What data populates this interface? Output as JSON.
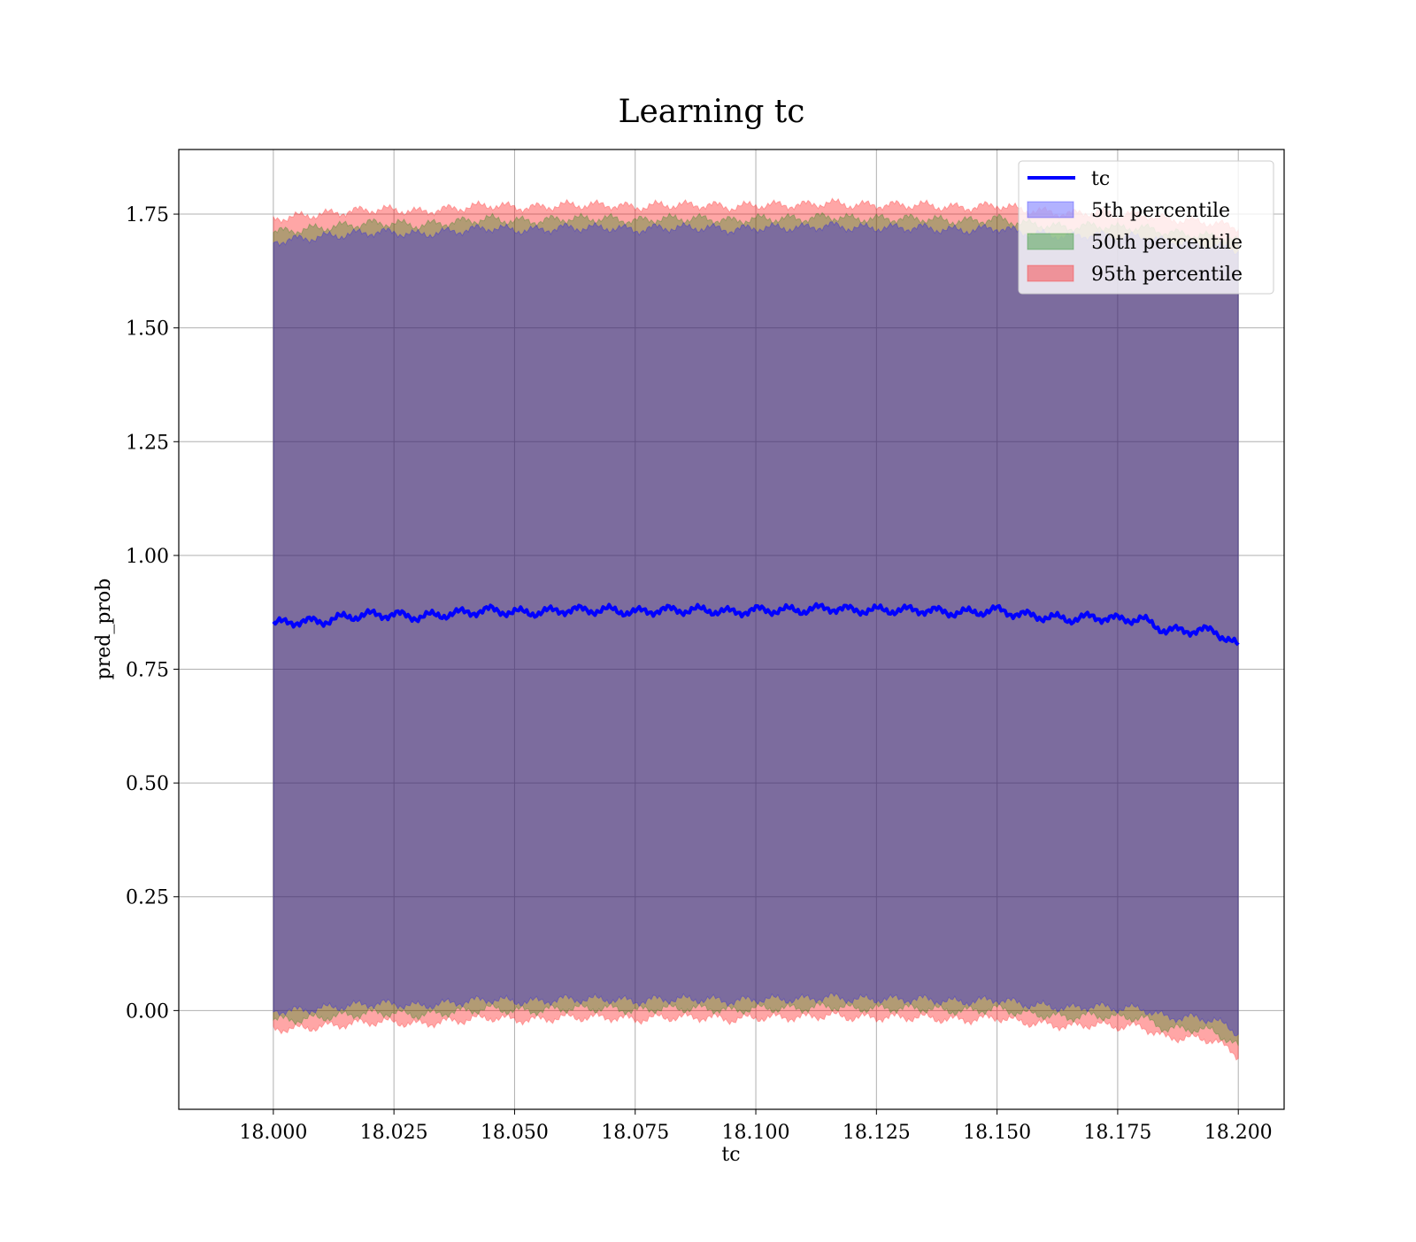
{
  "chart_data": {
    "type": "area",
    "title": "Learning tc",
    "xlabel": "tc",
    "ylabel": "pred_prob",
    "xlim": [
      17.9804,
      18.2095
    ],
    "ylim": [
      -0.217,
      1.892
    ],
    "grid": true,
    "legend_position": "top-right",
    "x_ticks": [
      18.0,
      18.025,
      18.05,
      18.075,
      18.1,
      18.125,
      18.15,
      18.175,
      18.2
    ],
    "x_tick_labels": [
      "18.000",
      "18.025",
      "18.050",
      "18.075",
      "18.100",
      "18.125",
      "18.150",
      "18.175",
      "18.200"
    ],
    "y_ticks": [
      0.0,
      0.25,
      0.5,
      0.75,
      1.0,
      1.25,
      1.5,
      1.75
    ],
    "y_tick_labels": [
      "0.00",
      "0.25",
      "0.50",
      "0.75",
      "1.00",
      "1.25",
      "1.50",
      "1.75"
    ],
    "x": [
      18.0,
      18.005,
      18.01,
      18.015,
      18.02,
      18.025,
      18.03,
      18.035,
      18.04,
      18.045,
      18.05,
      18.055,
      18.06,
      18.065,
      18.07,
      18.075,
      18.08,
      18.085,
      18.09,
      18.095,
      18.1,
      18.105,
      18.11,
      18.115,
      18.12,
      18.125,
      18.13,
      18.135,
      18.14,
      18.145,
      18.15,
      18.155,
      18.16,
      18.165,
      18.17,
      18.175,
      18.18,
      18.185,
      18.19,
      18.195,
      18.2
    ],
    "series": [
      {
        "name": "tc",
        "color": "#0000ff",
        "values": [
          0.85,
          0.855,
          0.855,
          0.865,
          0.87,
          0.87,
          0.865,
          0.87,
          0.875,
          0.88,
          0.875,
          0.875,
          0.88,
          0.88,
          0.88,
          0.875,
          0.88,
          0.88,
          0.88,
          0.875,
          0.88,
          0.88,
          0.88,
          0.885,
          0.88,
          0.88,
          0.88,
          0.88,
          0.875,
          0.875,
          0.88,
          0.87,
          0.865,
          0.86,
          0.865,
          0.86,
          0.86,
          0.835,
          0.835,
          0.835,
          0.8
        ]
      },
      {
        "name": "5th percentile",
        "color": "#0000ff",
        "lower": [
          0.0,
          0.0,
          0.005,
          0.01,
          0.015,
          0.015,
          0.01,
          0.015,
          0.02,
          0.025,
          0.02,
          0.02,
          0.025,
          0.025,
          0.025,
          0.02,
          0.025,
          0.025,
          0.025,
          0.02,
          0.025,
          0.025,
          0.025,
          0.03,
          0.025,
          0.025,
          0.025,
          0.025,
          0.02,
          0.02,
          0.025,
          0.015,
          0.01,
          0.005,
          0.01,
          0.005,
          0.005,
          -0.015,
          -0.015,
          -0.02,
          -0.05
        ],
        "upper": [
          1.69,
          1.695,
          1.7,
          1.705,
          1.71,
          1.71,
          1.705,
          1.71,
          1.715,
          1.72,
          1.715,
          1.715,
          1.72,
          1.72,
          1.72,
          1.715,
          1.72,
          1.72,
          1.72,
          1.715,
          1.72,
          1.72,
          1.72,
          1.725,
          1.72,
          1.72,
          1.72,
          1.72,
          1.715,
          1.715,
          1.72,
          1.71,
          1.705,
          1.7,
          1.705,
          1.7,
          1.7,
          1.69,
          1.685,
          1.68,
          1.67
        ]
      },
      {
        "name": "50th percentile",
        "color": "#008000",
        "lower": [
          -0.02,
          -0.02,
          -0.015,
          -0.01,
          -0.005,
          -0.005,
          -0.01,
          -0.005,
          0.0,
          0.005,
          0.0,
          0.0,
          0.005,
          0.005,
          0.005,
          0.0,
          0.005,
          0.005,
          0.005,
          0.0,
          0.005,
          0.005,
          0.005,
          0.01,
          0.005,
          0.005,
          0.005,
          0.005,
          0.0,
          0.0,
          0.005,
          -0.005,
          -0.01,
          -0.015,
          -0.01,
          -0.015,
          -0.015,
          -0.04,
          -0.04,
          -0.045,
          -0.08
        ],
        "upper": [
          1.71,
          1.715,
          1.72,
          1.725,
          1.73,
          1.73,
          1.725,
          1.73,
          1.735,
          1.74,
          1.735,
          1.735,
          1.74,
          1.74,
          1.74,
          1.735,
          1.74,
          1.74,
          1.74,
          1.735,
          1.74,
          1.74,
          1.74,
          1.745,
          1.74,
          1.74,
          1.74,
          1.74,
          1.735,
          1.735,
          1.74,
          1.73,
          1.725,
          1.72,
          1.725,
          1.72,
          1.72,
          1.71,
          1.705,
          1.7,
          1.69
        ]
      },
      {
        "name": "95th percentile",
        "color": "#ff0000",
        "lower": [
          -0.04,
          -0.04,
          -0.035,
          -0.03,
          -0.025,
          -0.025,
          -0.03,
          -0.025,
          -0.02,
          -0.015,
          -0.02,
          -0.02,
          -0.015,
          -0.015,
          -0.015,
          -0.02,
          -0.015,
          -0.015,
          -0.015,
          -0.02,
          -0.015,
          -0.015,
          -0.015,
          -0.01,
          -0.015,
          -0.015,
          -0.015,
          -0.015,
          -0.02,
          -0.02,
          -0.015,
          -0.025,
          -0.03,
          -0.035,
          -0.03,
          -0.035,
          -0.035,
          -0.06,
          -0.06,
          -0.065,
          -0.1
        ],
        "upper": [
          1.74,
          1.745,
          1.75,
          1.755,
          1.76,
          1.76,
          1.755,
          1.76,
          1.765,
          1.77,
          1.765,
          1.765,
          1.77,
          1.77,
          1.77,
          1.765,
          1.77,
          1.77,
          1.77,
          1.765,
          1.77,
          1.77,
          1.77,
          1.775,
          1.77,
          1.77,
          1.77,
          1.77,
          1.765,
          1.765,
          1.77,
          1.76,
          1.755,
          1.75,
          1.755,
          1.75,
          1.75,
          1.74,
          1.735,
          1.73,
          1.72
        ]
      }
    ]
  }
}
